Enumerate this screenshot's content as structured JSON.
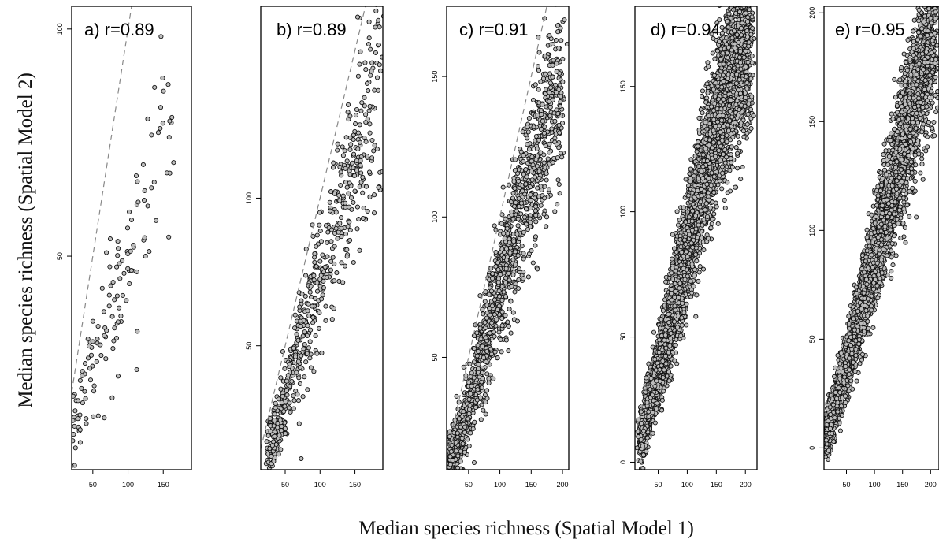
{
  "figure": {
    "xlabel": "Median species richness (Spatial Model 1)",
    "ylabel": "Median species richness (Spatial Model 2)"
  },
  "chart_data": [
    {
      "type": "scatter",
      "title": "a) r=0.89",
      "r": 0.89,
      "xlim": [
        20,
        190
      ],
      "ylim": [
        3,
        105
      ],
      "xticks": [
        50,
        100,
        150
      ],
      "yticks": [
        50,
        100
      ],
      "n_points": 150,
      "reference_line": "y = x (dashed)",
      "points": [
        [
          22,
          9
        ],
        [
          28,
          12
        ],
        [
          33,
          15
        ],
        [
          40,
          18
        ],
        [
          45,
          21
        ],
        [
          50,
          25
        ],
        [
          55,
          27
        ],
        [
          60,
          30
        ],
        [
          65,
          33
        ],
        [
          70,
          36
        ],
        [
          80,
          40
        ],
        [
          90,
          45
        ],
        [
          100,
          50
        ],
        [
          110,
          55
        ],
        [
          120,
          60
        ],
        [
          130,
          66
        ],
        [
          140,
          72
        ],
        [
          150,
          80
        ],
        [
          155,
          88
        ],
        [
          160,
          97
        ],
        [
          167,
          99
        ]
      ]
    },
    {
      "type": "scatter",
      "title": "b) r=0.89",
      "r": 0.89,
      "xlim": [
        15,
        190
      ],
      "ylim": [
        8,
        165
      ],
      "xticks": [
        50,
        100,
        150
      ],
      "yticks": [
        50,
        100
      ],
      "n_points": 600,
      "reference_line": "y = x (dashed)",
      "points": [
        [
          25,
          15
        ],
        [
          30,
          18
        ],
        [
          35,
          20
        ],
        [
          40,
          22
        ],
        [
          45,
          26
        ],
        [
          50,
          30
        ],
        [
          55,
          36
        ],
        [
          60,
          42
        ],
        [
          70,
          50
        ],
        [
          80,
          58
        ],
        [
          90,
          66
        ],
        [
          100,
          72
        ],
        [
          110,
          80
        ],
        [
          120,
          88
        ],
        [
          130,
          96
        ],
        [
          140,
          104
        ],
        [
          150,
          112
        ],
        [
          160,
          120
        ],
        [
          170,
          130
        ],
        [
          180,
          136
        ],
        [
          188,
          145
        ]
      ]
    },
    {
      "type": "scatter",
      "title": "c) r=0.91",
      "r": 0.91,
      "xlim": [
        15,
        210
      ],
      "ylim": [
        10,
        175
      ],
      "xticks": [
        50,
        100,
        150,
        200
      ],
      "yticks": [
        50,
        100,
        150
      ],
      "n_points": 1500,
      "reference_line": "y = x (dashed)",
      "points": [
        [
          20,
          15
        ],
        [
          25,
          16
        ],
        [
          30,
          19
        ],
        [
          35,
          21
        ],
        [
          40,
          24
        ],
        [
          45,
          27
        ],
        [
          50,
          31
        ],
        [
          55,
          36
        ],
        [
          60,
          42
        ],
        [
          70,
          50
        ],
        [
          80,
          58
        ],
        [
          90,
          66
        ],
        [
          100,
          75
        ],
        [
          110,
          83
        ],
        [
          120,
          92
        ],
        [
          130,
          100
        ],
        [
          140,
          108
        ],
        [
          150,
          115
        ],
        [
          160,
          122
        ],
        [
          170,
          130
        ],
        [
          185,
          140
        ],
        [
          200,
          150
        ]
      ]
    },
    {
      "type": "scatter",
      "title": "d) r=0.94",
      "r": 0.94,
      "xlim": [
        10,
        220
      ],
      "ylim": [
        -3,
        182
      ],
      "xticks": [
        50,
        100,
        150,
        200
      ],
      "yticks": [
        0,
        50,
        100,
        150
      ],
      "n_points": 8000,
      "reference_line": "y = x (dashed)",
      "points": [
        [
          20,
          10
        ],
        [
          30,
          20
        ],
        [
          40,
          28
        ],
        [
          50,
          36
        ],
        [
          60,
          45
        ],
        [
          70,
          55
        ],
        [
          80,
          65
        ],
        [
          90,
          75
        ],
        [
          100,
          85
        ],
        [
          110,
          95
        ],
        [
          120,
          105
        ],
        [
          130,
          115
        ],
        [
          140,
          125
        ],
        [
          150,
          135
        ],
        [
          160,
          145
        ],
        [
          175,
          155
        ],
        [
          190,
          162
        ],
        [
          210,
          170
        ]
      ]
    },
    {
      "type": "scatter",
      "title": "e) r=0.95",
      "r": 0.95,
      "xlim": [
        10,
        215
      ],
      "ylim": [
        -10,
        203
      ],
      "xticks": [
        50,
        100,
        150,
        200
      ],
      "yticks": [
        0,
        50,
        100,
        150,
        200
      ],
      "n_points": 15000,
      "reference_line": "y = x (dashed)",
      "points": [
        [
          15,
          8
        ],
        [
          25,
          15
        ],
        [
          35,
          25
        ],
        [
          50,
          38
        ],
        [
          65,
          52
        ],
        [
          80,
          68
        ],
        [
          95,
          82
        ],
        [
          110,
          98
        ],
        [
          125,
          112
        ],
        [
          140,
          128
        ],
        [
          150,
          140
        ],
        [
          165,
          155
        ],
        [
          180,
          168
        ],
        [
          195,
          182
        ],
        [
          210,
          195
        ]
      ]
    }
  ]
}
